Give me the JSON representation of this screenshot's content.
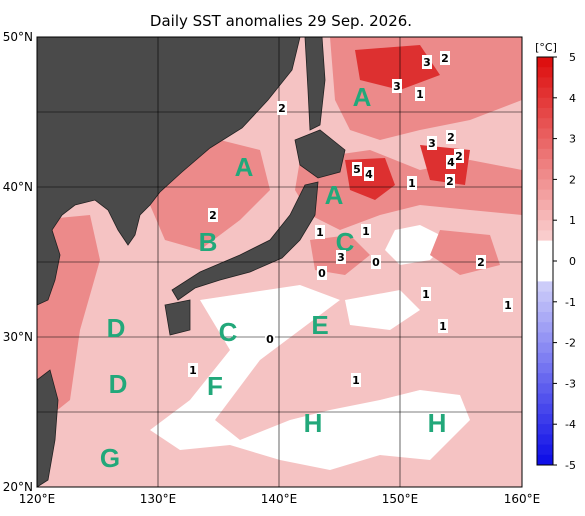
{
  "title": "Daily SST anomalies 29 Sep. 2026.",
  "map": {
    "lon_labels": [
      "120°E",
      "130°E",
      "140°E",
      "150°E",
      "160°E"
    ],
    "lat_labels": [
      "20°N",
      "30°N",
      "40°N",
      "50°N"
    ],
    "region_labels": [
      "A",
      "A",
      "A",
      "B",
      "C",
      "C",
      "D",
      "D",
      "E",
      "F",
      "G",
      "H",
      "H"
    ],
    "contour_labels": [
      "2",
      "3",
      "2",
      "3",
      "1",
      "3",
      "2",
      "4",
      "2",
      "5",
      "4",
      "1",
      "2",
      "2",
      "1",
      "1",
      "3",
      "0",
      "0",
      "2",
      "1",
      "1",
      "1",
      "0",
      "1",
      "1"
    ]
  },
  "colorbar": {
    "unit": "[°C]",
    "ticks": [
      5,
      4,
      3,
      2,
      1,
      0,
      -1,
      -2,
      -3,
      -4,
      -5
    ]
  }
}
